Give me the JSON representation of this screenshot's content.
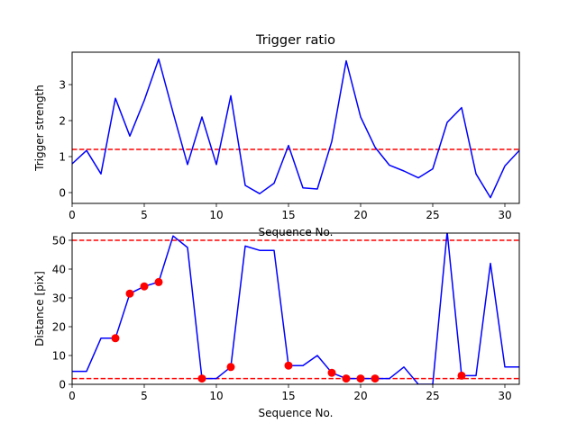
{
  "chart_data": [
    {
      "type": "line",
      "title": "Trigger ratio",
      "xlabel": "Sequence No.",
      "ylabel": "Trigger strength",
      "xlim": [
        0,
        31
      ],
      "ylim": [
        -0.3,
        3.9
      ],
      "xticks": [
        0,
        5,
        10,
        15,
        20,
        25,
        30
      ],
      "yticks": [
        0,
        1,
        2,
        3
      ],
      "series": [
        {
          "color": "#0000ff",
          "x": [
            0,
            1,
            2,
            3,
            4,
            5,
            6,
            7,
            8,
            9,
            10,
            11,
            12,
            13,
            14,
            15,
            16,
            17,
            18,
            19,
            20,
            21,
            22,
            23,
            24,
            25,
            26,
            27,
            28,
            29,
            30,
            31
          ],
          "values": [
            0.8,
            1.17,
            0.52,
            2.62,
            1.57,
            2.56,
            3.71,
            2.22,
            0.78,
            2.1,
            0.78,
            2.69,
            0.2,
            -0.03,
            0.26,
            1.31,
            0.13,
            0.1,
            1.42,
            3.66,
            2.1,
            1.26,
            0.76,
            0.6,
            0.41,
            0.66,
            1.95,
            2.36,
            0.52,
            -0.14,
            0.74,
            1.17
          ]
        }
      ],
      "hlines": [
        {
          "y": 1.2,
          "color": "#ff0000",
          "style": "dashed"
        }
      ]
    },
    {
      "type": "line",
      "title": "",
      "xlabel": "Sequence No.",
      "ylabel": "Distance [pix]",
      "xlim": [
        0,
        31
      ],
      "ylim": [
        0,
        52.5
      ],
      "xticks": [
        0,
        5,
        10,
        15,
        20,
        25,
        30
      ],
      "yticks": [
        0,
        10,
        20,
        30,
        40,
        50
      ],
      "series": [
        {
          "color": "#0000ff",
          "x": [
            0,
            1,
            2,
            3,
            4,
            5,
            6,
            7,
            8,
            9,
            10,
            11,
            12,
            13,
            14,
            15,
            16,
            17,
            18,
            19,
            20,
            21,
            22,
            23,
            24,
            25,
            26,
            27,
            28,
            29,
            30,
            31
          ],
          "values": [
            4.5,
            4.5,
            16,
            16,
            31.5,
            34,
            35.5,
            51.5,
            47.5,
            2,
            2,
            6,
            48,
            46.5,
            46.5,
            6.5,
            6.5,
            10,
            4,
            2,
            2,
            2,
            2,
            6,
            0,
            0,
            53,
            3,
            3,
            42,
            6,
            6
          ]
        }
      ],
      "markers": {
        "color": "#ff0000",
        "x": [
          3,
          4,
          5,
          6,
          9,
          11,
          15,
          18,
          19,
          20,
          21,
          27
        ],
        "values": [
          16,
          31.5,
          34,
          35.5,
          2,
          6,
          6.5,
          4,
          2,
          2,
          2,
          3
        ]
      },
      "hlines": [
        {
          "y": 50,
          "color": "#ff0000",
          "style": "dashed"
        },
        {
          "y": 2,
          "color": "#ff0000",
          "style": "dashed"
        }
      ]
    }
  ]
}
